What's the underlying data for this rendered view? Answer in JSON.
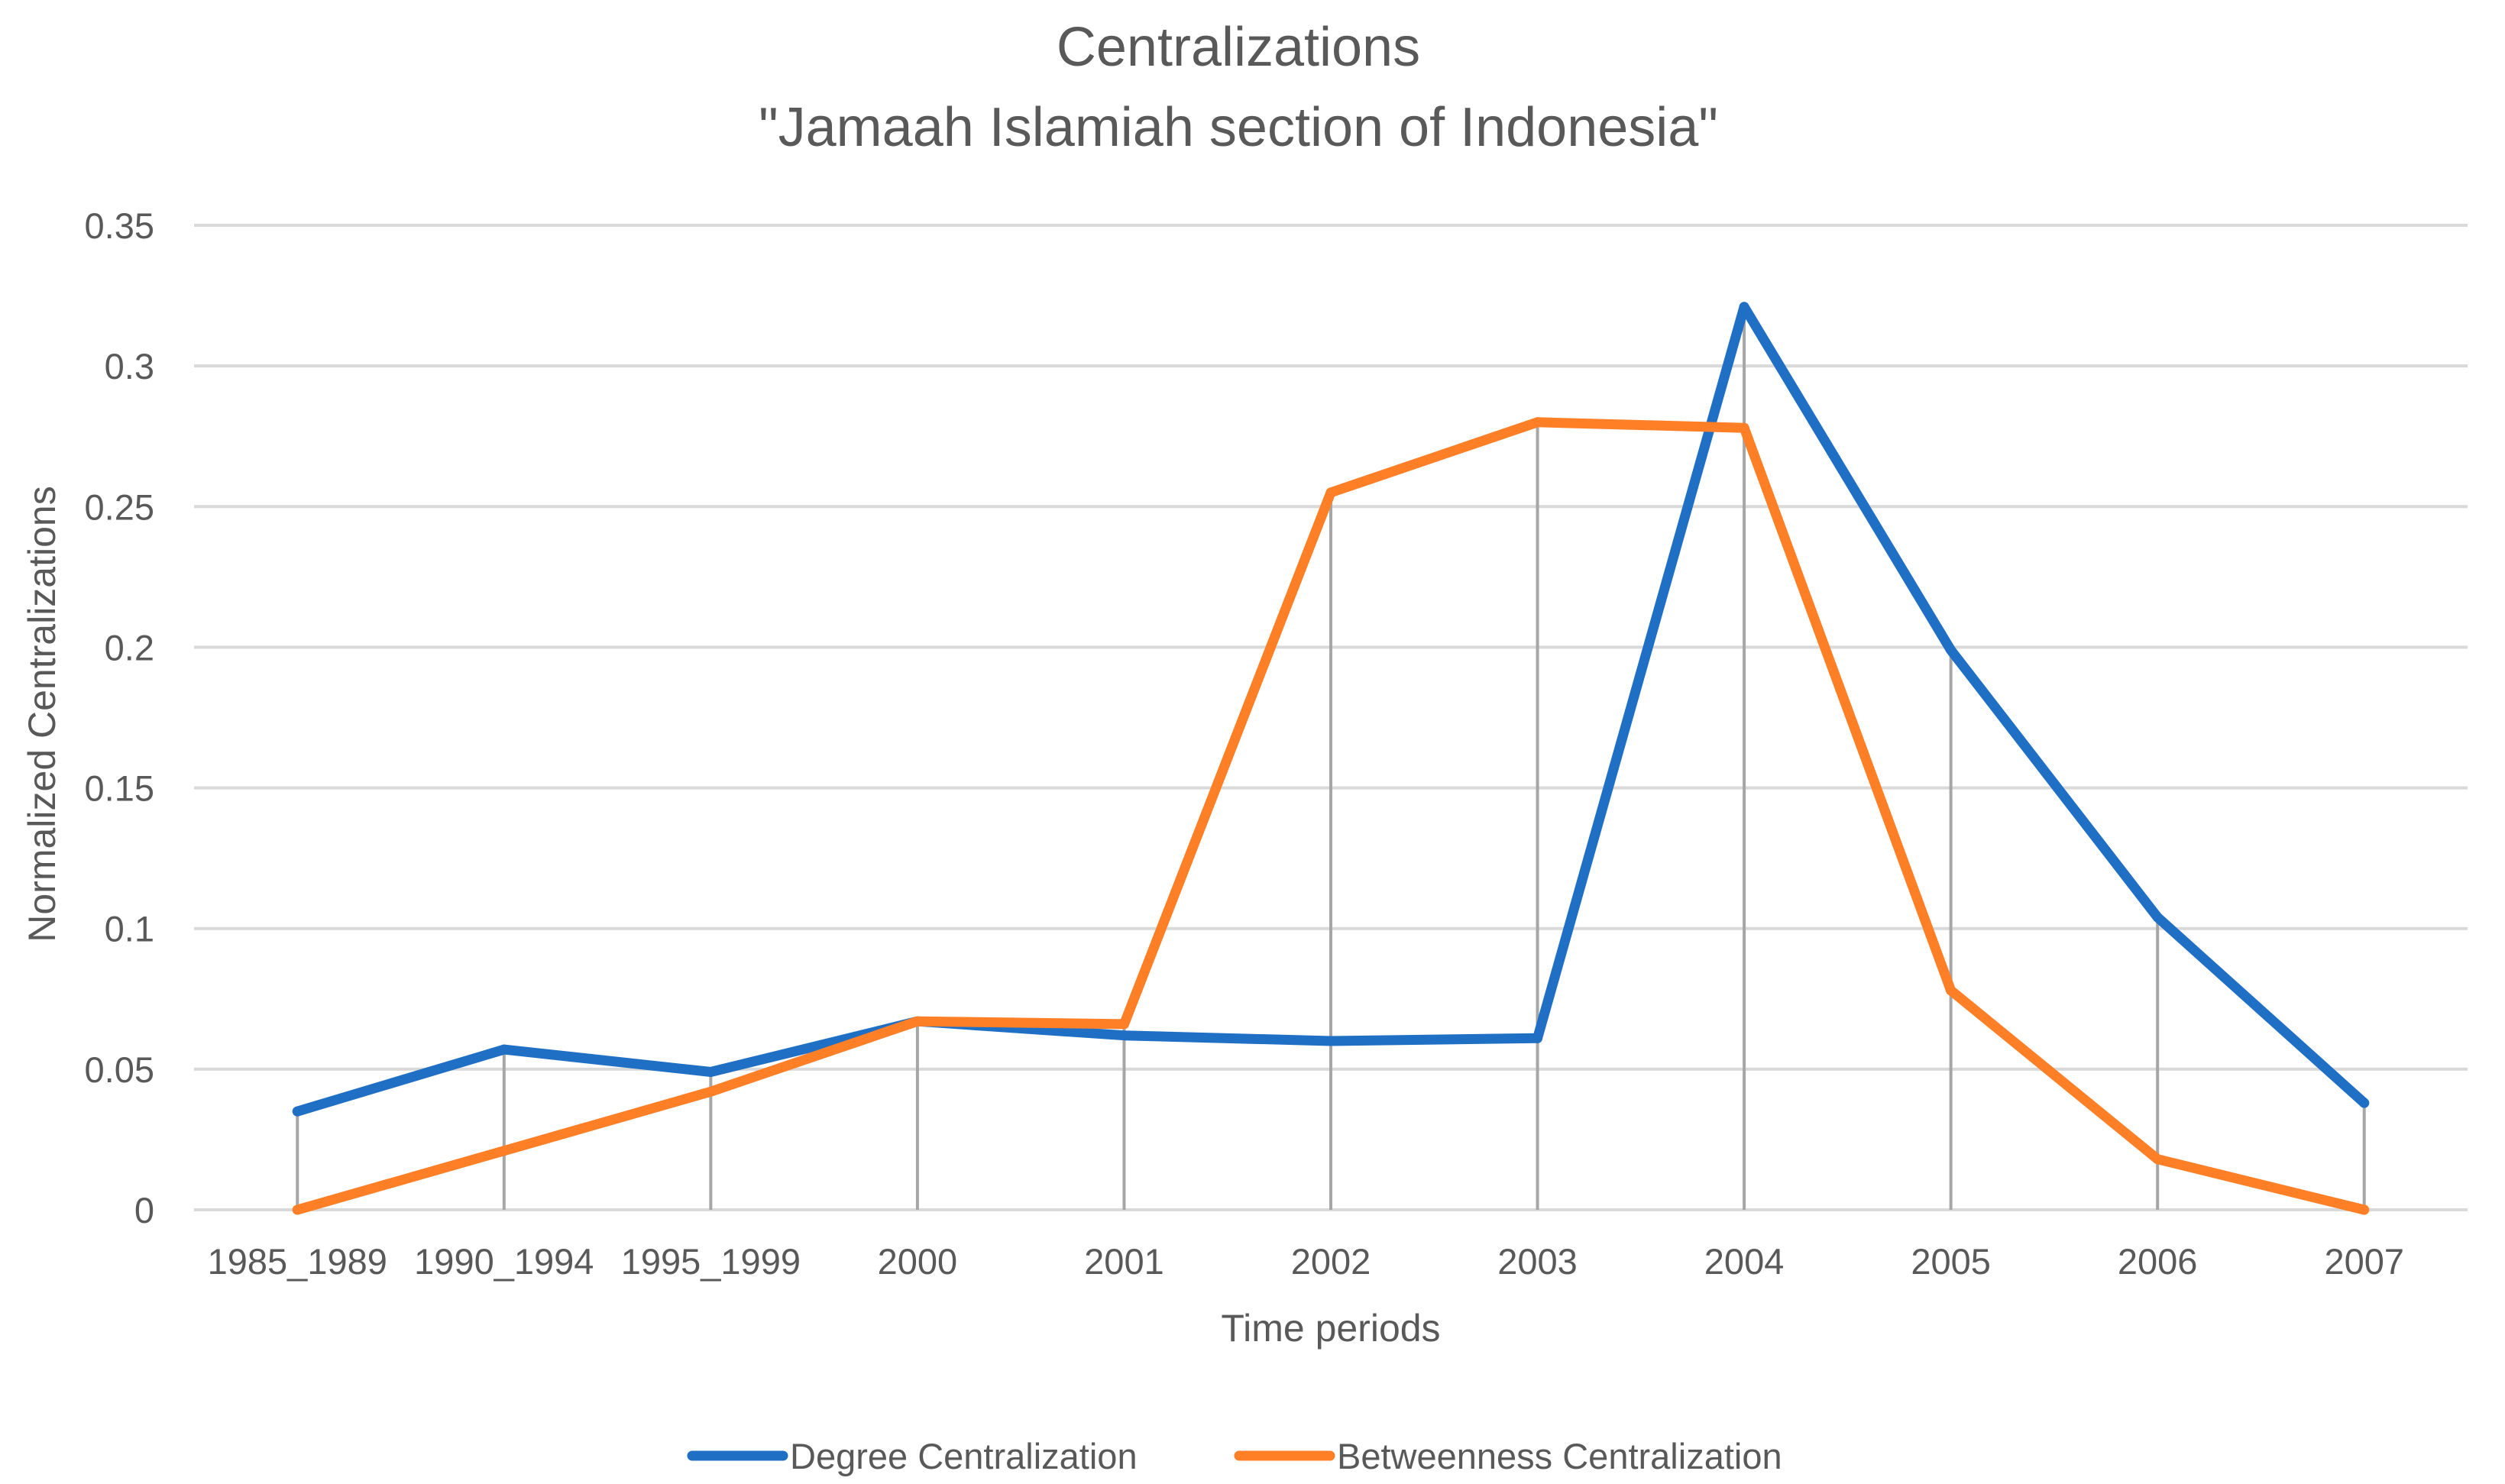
{
  "chart_data": {
    "type": "line",
    "title": "Centralizations",
    "subtitle": "\"Jamaah Islamiah section of Indonesia\"",
    "xlabel": "Time periods",
    "ylabel": "Normalized Centralizations",
    "categories": [
      "1985_1989",
      "1990_1994",
      "1995_1999",
      "2000",
      "2001",
      "2002",
      "2003",
      "2004",
      "2005",
      "2006",
      "2007"
    ],
    "ylim": [
      0,
      0.35
    ],
    "yticks": [
      0,
      0.05,
      0.1,
      0.15,
      0.2,
      0.25,
      0.3,
      0.35
    ],
    "ytick_labels": [
      "0",
      "0.05",
      "0.1",
      "0.15",
      "0.2",
      "0.25",
      "0.3",
      "0.35"
    ],
    "grid": true,
    "drop_lines": true,
    "legend_position": "bottom",
    "series": [
      {
        "name": "Degree Centralization",
        "color": "#1F6FC5",
        "values": [
          0.035,
          0.057,
          0.049,
          0.067,
          0.062,
          0.06,
          0.061,
          0.321,
          0.199,
          0.104,
          0.038
        ]
      },
      {
        "name": "Betweenness Centralization",
        "color": "#FF7F27",
        "values": [
          0.0,
          0.021,
          0.042,
          0.067,
          0.066,
          0.255,
          0.28,
          0.278,
          0.078,
          0.018,
          0.0
        ]
      }
    ]
  }
}
